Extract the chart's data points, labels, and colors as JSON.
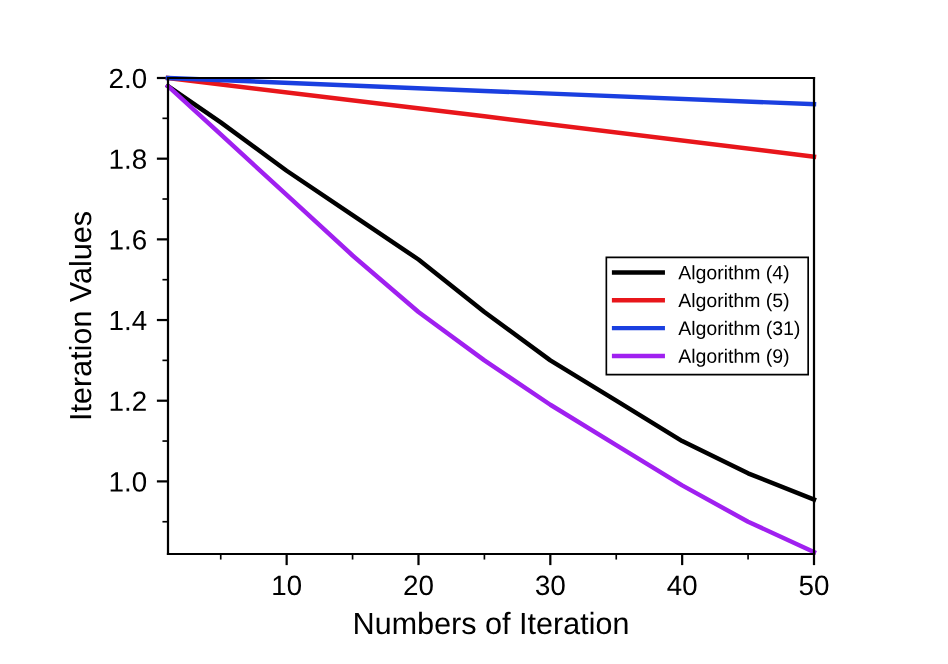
{
  "chart_data": {
    "type": "line",
    "xlabel": "Numbers of Iteration",
    "ylabel": "Iteration Values",
    "xlim": [
      1,
      50
    ],
    "xticks": [
      10,
      20,
      30,
      40,
      50
    ],
    "ylim": [
      0.82,
      2.0
    ],
    "yticks": [
      {
        "value": 1,
        "label": "1.0"
      },
      1.2,
      1.4,
      1.6,
      1.8,
      {
        "value": 2,
        "label": "2.0"
      }
    ],
    "grid": false,
    "legend": "right",
    "marker": "none",
    "line_style": "solid",
    "series": [
      {
        "name": "Algorithm (4)",
        "color": "#000000",
        "x": [
          1,
          5,
          10,
          15,
          20,
          25,
          30,
          35,
          40,
          45,
          50
        ],
        "values": [
          1.98,
          1.89,
          1.77,
          1.66,
          1.55,
          1.42,
          1.3,
          1.2,
          1.1,
          1.02,
          0.955
        ]
      },
      {
        "name": "Algorithm (5)",
        "color": "#e8161b",
        "x": [
          1,
          25,
          50
        ],
        "values": [
          2.0,
          1.905,
          1.805
        ]
      },
      {
        "name": "Algorithm (31)",
        "color": "#1a3fe0",
        "x": [
          1,
          25,
          50
        ],
        "values": [
          2.0,
          1.968,
          1.935
        ]
      },
      {
        "name": "Algorithm (9)",
        "color": "#a020f0",
        "x": [
          1,
          5,
          10,
          15,
          20,
          25,
          30,
          35,
          40,
          45,
          50
        ],
        "values": [
          1.98,
          1.86,
          1.71,
          1.56,
          1.42,
          1.3,
          1.19,
          1.09,
          0.99,
          0.9,
          0.825
        ]
      }
    ]
  }
}
